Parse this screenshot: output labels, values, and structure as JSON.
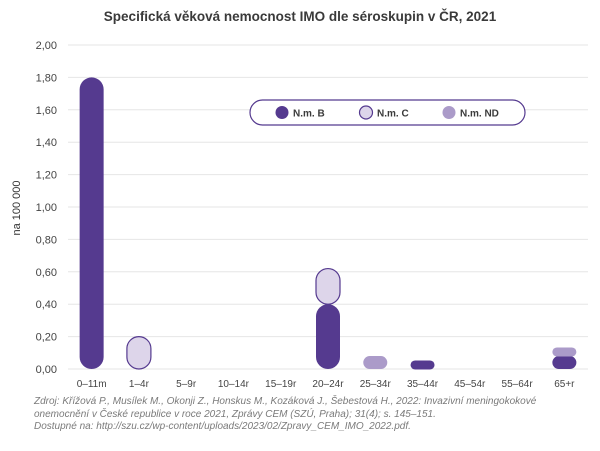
{
  "chart_data": {
    "type": "bar",
    "title": "Specifická věková nemocnost IMO dle séroskupin v ČR, 2021",
    "ylabel": "na 100 000",
    "xlabel": "",
    "ylim": [
      0,
      2.0
    ],
    "yticks": [
      "0,00",
      "0,20",
      "0,40",
      "0,60",
      "0,80",
      "1,00",
      "1,20",
      "1,40",
      "1,60",
      "1,80",
      "2,00"
    ],
    "categories": [
      "0–11m",
      "1–4r",
      "5–9r",
      "10–14r",
      "15–19r",
      "20–24r",
      "25–34r",
      "35–44r",
      "45–54r",
      "55–64r",
      "65+r"
    ],
    "stacked": true,
    "grid": true,
    "legend_position": "top-right",
    "series": [
      {
        "name": "N.m. B",
        "color": "#553a8f",
        "values": [
          1.8,
          0,
          0,
          0,
          0,
          0.4,
          0,
          0.05,
          0,
          0,
          0.08
        ]
      },
      {
        "name": "N.m. C",
        "color": "#ddd5ea",
        "values": [
          0,
          0.2,
          0,
          0,
          0,
          0.22,
          0,
          0,
          0,
          0,
          0
        ]
      },
      {
        "name": "N.m. ND",
        "color": "#ab9bc9",
        "values": [
          0,
          0,
          0,
          0,
          0,
          0,
          0.08,
          0,
          0,
          0,
          0.05
        ]
      }
    ]
  },
  "source": {
    "line1": "Zdroj: Křížová P., Musílek M., Okonji Z., Honskus M., Kozáková J., Šebestová H., 2022: Invazivní meningokokové",
    "line2": "onemocnění v České republice v roce 2021, Zprávy CEM (SZÚ, Praha); 31(4); s. 145–151.",
    "line3": "Dostupné na: http://szu.cz/wp-content/uploads/2023/02/Zpravy_CEM_IMO_2022.pdf."
  }
}
